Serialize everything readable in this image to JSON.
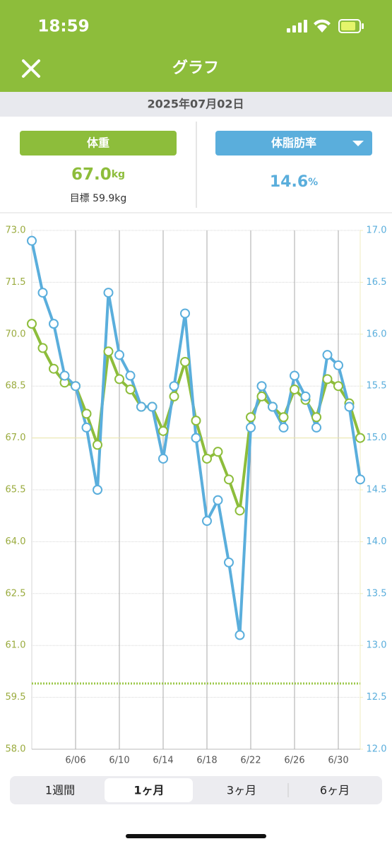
{
  "status_bar": {
    "time": "18:59"
  },
  "header": {
    "title": "グラフ"
  },
  "date": "2025年07月02日",
  "metrics": {
    "weight_value": "67.0",
    "weight_unit": "kg",
    "goal": "目標 59.9kg",
    "fat_value": "14.6",
    "fat_unit": "%"
  },
  "tabs": [
    "1週間",
    "1ヶ月",
    "3ヶ月",
    "6ヶ月"
  ],
  "chart_data": {
    "type": "line",
    "categories": [
      null,
      null,
      null,
      null,
      "6/06",
      null,
      null,
      null,
      "6/10",
      null,
      null,
      null,
      "6/14",
      null,
      null,
      null,
      "6/18",
      null,
      null,
      null,
      "6/22",
      null,
      null,
      null,
      "6/26",
      null,
      null,
      null,
      "6/30",
      null,
      null
    ],
    "series": [
      {
        "name": "体重",
        "color": "#8dbd3b",
        "axis": "y",
        "values": [
          70.3,
          69.6,
          69.0,
          68.6,
          68.5,
          67.7,
          66.8,
          69.5,
          68.7,
          68.4,
          67.9,
          67.9,
          67.2,
          68.2,
          69.2,
          67.5,
          66.4,
          66.6,
          65.8,
          64.9,
          67.6,
          68.2,
          67.9,
          67.6,
          68.4,
          68.1,
          67.6,
          68.7,
          68.5,
          68.0,
          67.0
        ]
      },
      {
        "name": "体脂肪率",
        "color": "#5aaedc",
        "axis": "y2",
        "values": [
          16.9,
          16.4,
          16.1,
          15.6,
          15.5,
          15.1,
          14.5,
          16.4,
          15.8,
          15.6,
          15.3,
          15.3,
          14.8,
          15.5,
          16.2,
          15.0,
          14.2,
          14.4,
          13.8,
          13.1,
          15.1,
          15.5,
          15.3,
          15.1,
          15.6,
          15.4,
          15.1,
          15.8,
          15.7,
          15.3,
          14.6
        ]
      }
    ],
    "ylim": [
      58,
      73
    ],
    "yticks": [
      {
        "value": 58,
        "label": "58.0"
      },
      59.5,
      {
        "value": 61,
        "label": "61.0"
      },
      62.5,
      {
        "value": 64,
        "label": "64.0"
      },
      65.5,
      {
        "value": 67,
        "label": "67.0"
      },
      68.5,
      {
        "value": 70,
        "label": "70.0"
      },
      71.5,
      {
        "value": 73,
        "label": "73.0"
      }
    ],
    "y2lim": [
      12,
      17
    ],
    "y2ticks": [
      {
        "value": 12,
        "label": "12.0"
      },
      12.5,
      {
        "value": 13,
        "label": "13.0"
      },
      13.5,
      {
        "value": 14,
        "label": "14.0"
      },
      14.5,
      {
        "value": 15,
        "label": "15.0"
      },
      15.5,
      {
        "value": 16,
        "label": "16.0"
      },
      16.5,
      {
        "value": 17,
        "label": "17.0"
      }
    ],
    "goal": 59.9,
    "grid": true
  }
}
